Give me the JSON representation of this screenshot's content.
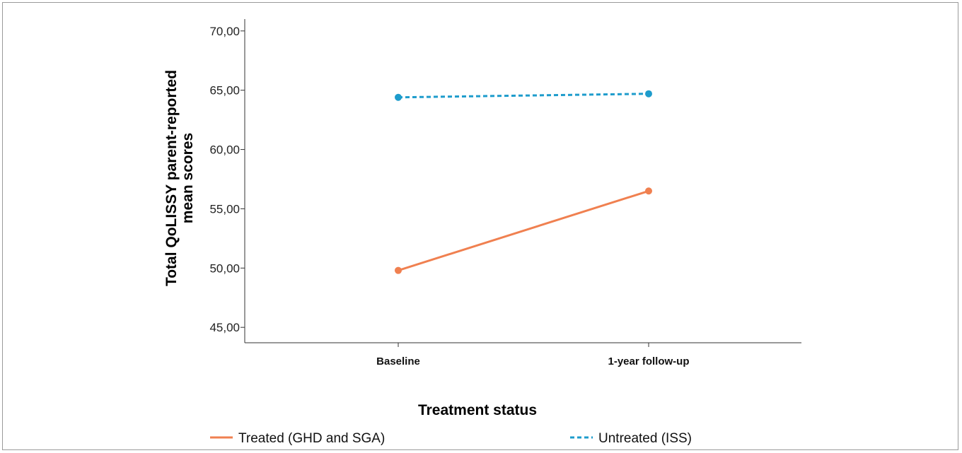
{
  "chart_data": {
    "type": "line",
    "title": "",
    "xlabel": "Treatment status",
    "ylabel_line1": "Total QoLISSY parent-reported",
    "ylabel_line2": "mean scores",
    "categories": [
      "Baseline",
      "1-year follow-up"
    ],
    "ylim": [
      43.7,
      71.0
    ],
    "yticks": [
      45,
      50,
      55,
      60,
      65,
      70
    ],
    "ytick_labels": [
      "45,00",
      "50,00",
      "55,00",
      "60,00",
      "65,00",
      "70,00"
    ],
    "grid": false,
    "legend_position": "bottom",
    "series": [
      {
        "name": "Treated (GHD and SGA)",
        "values": [
          49.8,
          56.5
        ],
        "color": "#f08050",
        "style": "solid"
      },
      {
        "name": "Untreated (ISS)",
        "values": [
          64.4,
          64.7
        ],
        "color": "#1e9ccc",
        "style": "dashed"
      }
    ]
  }
}
